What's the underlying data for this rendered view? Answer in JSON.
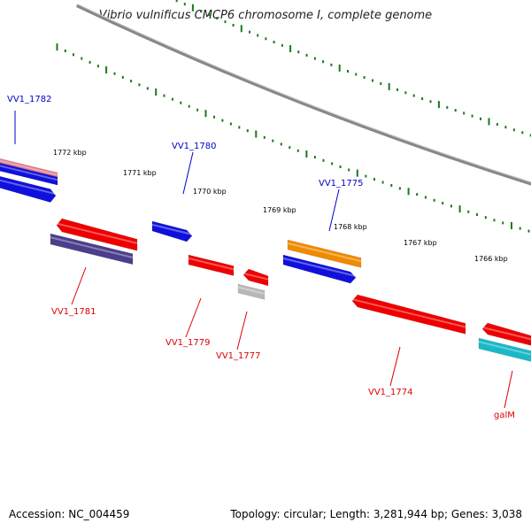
{
  "title": "Vibrio vulnificus CMCP6 chromosome I, complete genome",
  "footer": {
    "accession": "Accession: NC_004459",
    "summary": "Topology: circular; Length: 3,281,944 bp; Genes: 3,038"
  },
  "colors": {
    "backbone": "#888888",
    "tick": "#1a7a1a",
    "label_forward": "#0000cc",
    "label_reverse": "#dd0000"
  },
  "ticks": [
    "1772 kbp",
    "1771 kbp",
    "1770 kbp",
    "1769 kbp",
    "1768 kbp",
    "1767 kbp",
    "1766 kbp"
  ],
  "features": [
    {
      "strand": "forward",
      "color": "#e07a8a",
      "label": ""
    },
    {
      "strand": "forward",
      "color": "#1010dd",
      "label": ""
    },
    {
      "strand": "forward",
      "color": "#1010dd",
      "label": ""
    },
    {
      "strand": "forward",
      "color": "#1010dd",
      "label": ""
    },
    {
      "strand": "forward",
      "color": "#f08a00",
      "label": ""
    },
    {
      "strand": "forward",
      "color": "#1010dd",
      "label": ""
    },
    {
      "strand": "reverse",
      "color": "#ee0000",
      "label": ""
    },
    {
      "strand": "reverse",
      "color": "#4b3f8c",
      "label": ""
    },
    {
      "strand": "reverse",
      "color": "#ee0000",
      "label": ""
    },
    {
      "strand": "reverse",
      "color": "#ee0000",
      "label": ""
    },
    {
      "strand": "reverse",
      "color": "#b8b8b8",
      "label": ""
    },
    {
      "strand": "reverse",
      "color": "#ee0000",
      "label": ""
    },
    {
      "strand": "reverse",
      "color": "#ee0000",
      "label": ""
    },
    {
      "strand": "reverse",
      "color": "#1ab8c8",
      "label": ""
    }
  ],
  "gene_labels": [
    {
      "text": "VV1_1782",
      "strand": "forward"
    },
    {
      "text": "VV1_1780",
      "strand": "forward"
    },
    {
      "text": "VV1_1775",
      "strand": "forward"
    },
    {
      "text": "VV1_1781",
      "strand": "reverse"
    },
    {
      "text": "VV1_1779",
      "strand": "reverse"
    },
    {
      "text": "VV1_1777",
      "strand": "reverse"
    },
    {
      "text": "VV1_1774",
      "strand": "reverse"
    },
    {
      "text": "galM",
      "strand": "reverse"
    }
  ]
}
